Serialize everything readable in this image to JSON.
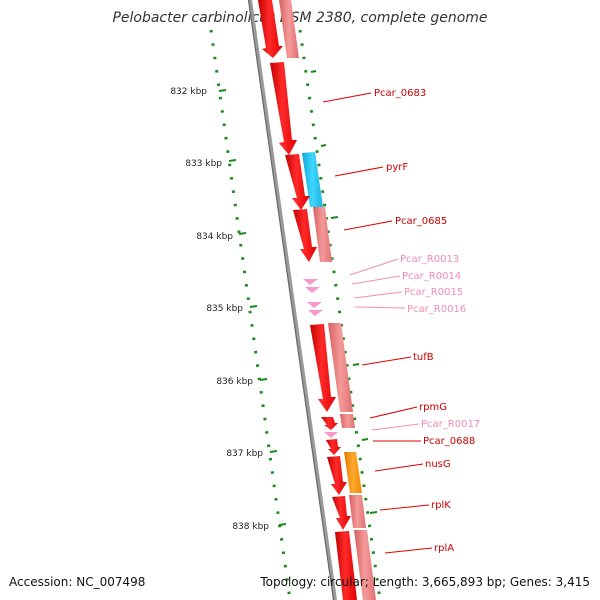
{
  "title": "Pelobacter carbinolicus DSM 2380, complete genome",
  "footer": {
    "accession": "Accession: NC_007498",
    "summary": "Topology: circular; Length: 3,665,893 bp; Genes: 3,415"
  },
  "colors": {
    "gene_red": "#ff1a1a",
    "gene_dark": "#cc0000",
    "cds_pink": "#f08080",
    "rna_pink": "#ffa0c8",
    "highlight_blue": "#1ec8f0",
    "highlight_orange": "#ff9910",
    "backbone": "#808080",
    "tick_green": "#1a8a1a",
    "label_red": "#cc0000",
    "label_pink": "#f08cb4"
  },
  "ticks": [
    "832 kbp",
    "833 kbp",
    "834 kbp",
    "835 kbp",
    "836 kbp",
    "837 kbp",
    "838 kbp"
  ],
  "genes": [
    {
      "label": "Pcar_0683",
      "kind": "gene"
    },
    {
      "label": "pyrF",
      "kind": "gene"
    },
    {
      "label": "Pcar_0685",
      "kind": "gene"
    },
    {
      "label": "Pcar_R0013",
      "kind": "rna"
    },
    {
      "label": "Pcar_R0014",
      "kind": "rna"
    },
    {
      "label": "Pcar_R0015",
      "kind": "rna"
    },
    {
      "label": "Pcar_R0016",
      "kind": "rna"
    },
    {
      "label": "tufB",
      "kind": "gene"
    },
    {
      "label": "rpmG",
      "kind": "gene"
    },
    {
      "label": "Pcar_R0017",
      "kind": "rna"
    },
    {
      "label": "Pcar_0688",
      "kind": "gene"
    },
    {
      "label": "nusG",
      "kind": "gene"
    },
    {
      "label": "rplK",
      "kind": "gene"
    },
    {
      "label": "rplA",
      "kind": "gene"
    }
  ]
}
